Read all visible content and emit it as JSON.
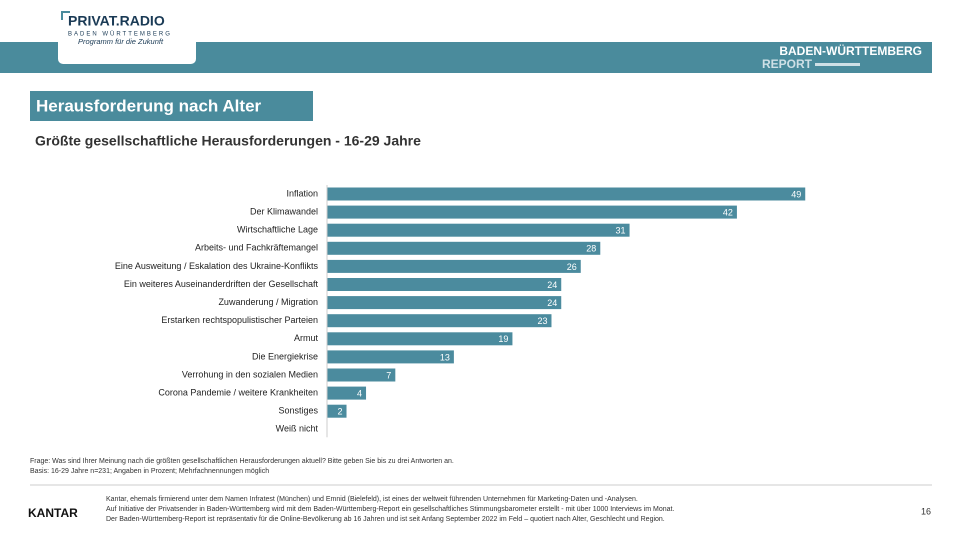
{
  "header": {
    "logo_title": "PRIVAT.RADIO",
    "logo_region": "BADEN WÜRTTEMBERG",
    "logo_slogan": "Programm für die Zukunft",
    "report_title": "BADEN-WÜRTTEMBERG",
    "report_subtitle": "REPORT"
  },
  "chart_data": {
    "type": "hbar",
    "title": "Herausforderung nach Alter",
    "subtitle": "Größte gesellschaftliche Herausforderungen - 16-29 Jahre",
    "categories": [
      "Inflation",
      "Der Klimawandel",
      "Wirtschaftliche Lage",
      "Arbeits- und Fachkräftemangel",
      "Eine Ausweitung / Eskalation des Ukraine-Konflikts",
      "Ein weiteres Auseinanderdriften der Gesellschaft",
      "Zuwanderung / Migration",
      "Erstarken rechtspopulistischer Parteien",
      "Armut",
      "Die Energiekrise",
      "Verrohung in den sozialen Medien",
      "Corona Pandemie / weitere Krankheiten",
      "Sonstiges",
      "Weiß nicht"
    ],
    "values": [
      49,
      42,
      31,
      28,
      26,
      24,
      24,
      23,
      19,
      13,
      7,
      4,
      2,
      0
    ],
    "value_labels": [
      "49",
      "42",
      "31",
      "28",
      "26",
      "24",
      "24",
      "23",
      "19",
      "13",
      "7",
      "4",
      "2",
      null
    ],
    "color": "#4b8b9e",
    "xlim": [
      0,
      50
    ]
  },
  "footer": {
    "question": "Frage: Was sind Ihrer Meinung nach die größten gesellschaftlichen Herausforderungen aktuell? Bitte geben Sie bis zu drei Antworten an.",
    "base": "Basis: 16-29 Jahre n=231; Angaben in Prozent; Mehrfachnennungen möglich",
    "brand": "KANTAR",
    "notes": [
      "Kantar, ehemals firmierend unter dem Namen Infratest (München) und Emnid (Bielefeld), ist eines der weltweit führenden Unternehmen für Marketing-Daten und -Analysen.",
      "Auf Initiative der Privatsender in Baden-Württemberg wird mit dem Baden-Württemberg-Report ein gesellschaftliches Stimmungsbarometer erstellt - mit über 1000 Interviews im Monat.",
      "Der Baden-Württemberg-Report ist repräsentativ für die Online-Bevölkerung ab 16 Jahren und ist seit Anfang September 2022 im Feld – quotiert nach Alter, Geschlecht und Region."
    ],
    "page": "16"
  }
}
